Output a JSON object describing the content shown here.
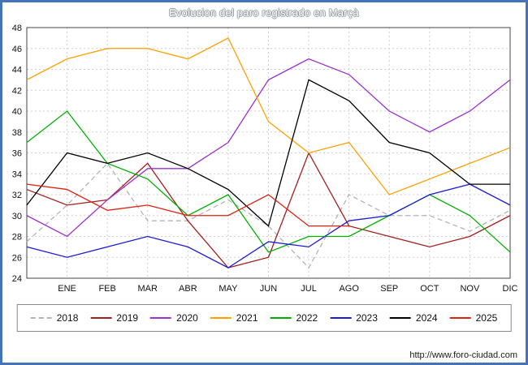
{
  "header": {
    "title": "Evolucion del paro registrado en Marçà"
  },
  "footer": {
    "url": "http://www.foro-ciudad.com"
  },
  "colors": {
    "frame": "#4673b8",
    "grid": "#cfcfcf",
    "plot_border": "#444444"
  },
  "chart_data": {
    "type": "line",
    "title": "Evolucion del paro registrado en Marçà",
    "x_labels": [
      "ENE",
      "FEB",
      "MAR",
      "ABR",
      "MAY",
      "JUN",
      "JUL",
      "AGO",
      "SEP",
      "OCT",
      "NOV",
      "DIC"
    ],
    "ylim": [
      24,
      48
    ],
    "ytick_step": 2,
    "grid": true,
    "legend_position": "bottom",
    "note": "Each series has up to 13 points: index 0 sits on the left axis edge (previous December) and indexes 1-12 align with the month labels ENE-DIC. Values estimated from gridlines.",
    "series": [
      {
        "name": "2018",
        "color": "#b3b3b3",
        "dash": true,
        "values": [
          27.5,
          31,
          35,
          29.5,
          29.5,
          31.5,
          29,
          25,
          32,
          30,
          30,
          28.5,
          30.5
        ]
      },
      {
        "name": "2019",
        "color": "#a02020",
        "dash": false,
        "values": [
          32.5,
          31,
          31.5,
          35,
          29.5,
          25,
          26,
          36,
          29,
          28,
          27,
          28,
          30
        ]
      },
      {
        "name": "2020",
        "color": "#9932cc",
        "dash": false,
        "values": [
          30,
          28,
          31.5,
          34.5,
          34.5,
          37,
          43,
          45,
          43.5,
          40,
          38,
          40,
          43
        ]
      },
      {
        "name": "2021",
        "color": "#ffa000",
        "dash": false,
        "values": [
          43,
          45,
          46,
          46,
          45,
          47,
          39,
          36,
          37,
          32,
          33.5,
          35,
          36.5
        ]
      },
      {
        "name": "2022",
        "color": "#00b000",
        "dash": false,
        "values": [
          37,
          40,
          35,
          33.5,
          30,
          32,
          26.5,
          28,
          28,
          30,
          32,
          30,
          26.5
        ]
      },
      {
        "name": "2023",
        "color": "#1c1cd8",
        "dash": false,
        "values": [
          27,
          26,
          27,
          28,
          27,
          25,
          27.5,
          27,
          29.5,
          30,
          32,
          33,
          31
        ]
      },
      {
        "name": "2024",
        "color": "#000000",
        "dash": false,
        "values": [
          31,
          36,
          35,
          36,
          34.5,
          32.5,
          29,
          43,
          41,
          37,
          36,
          33,
          33
        ]
      },
      {
        "name": "2025",
        "color": "#dd2211",
        "dash": false,
        "values": [
          33,
          32.5,
          30.5,
          31,
          30,
          30,
          32,
          29,
          29
        ]
      }
    ]
  }
}
